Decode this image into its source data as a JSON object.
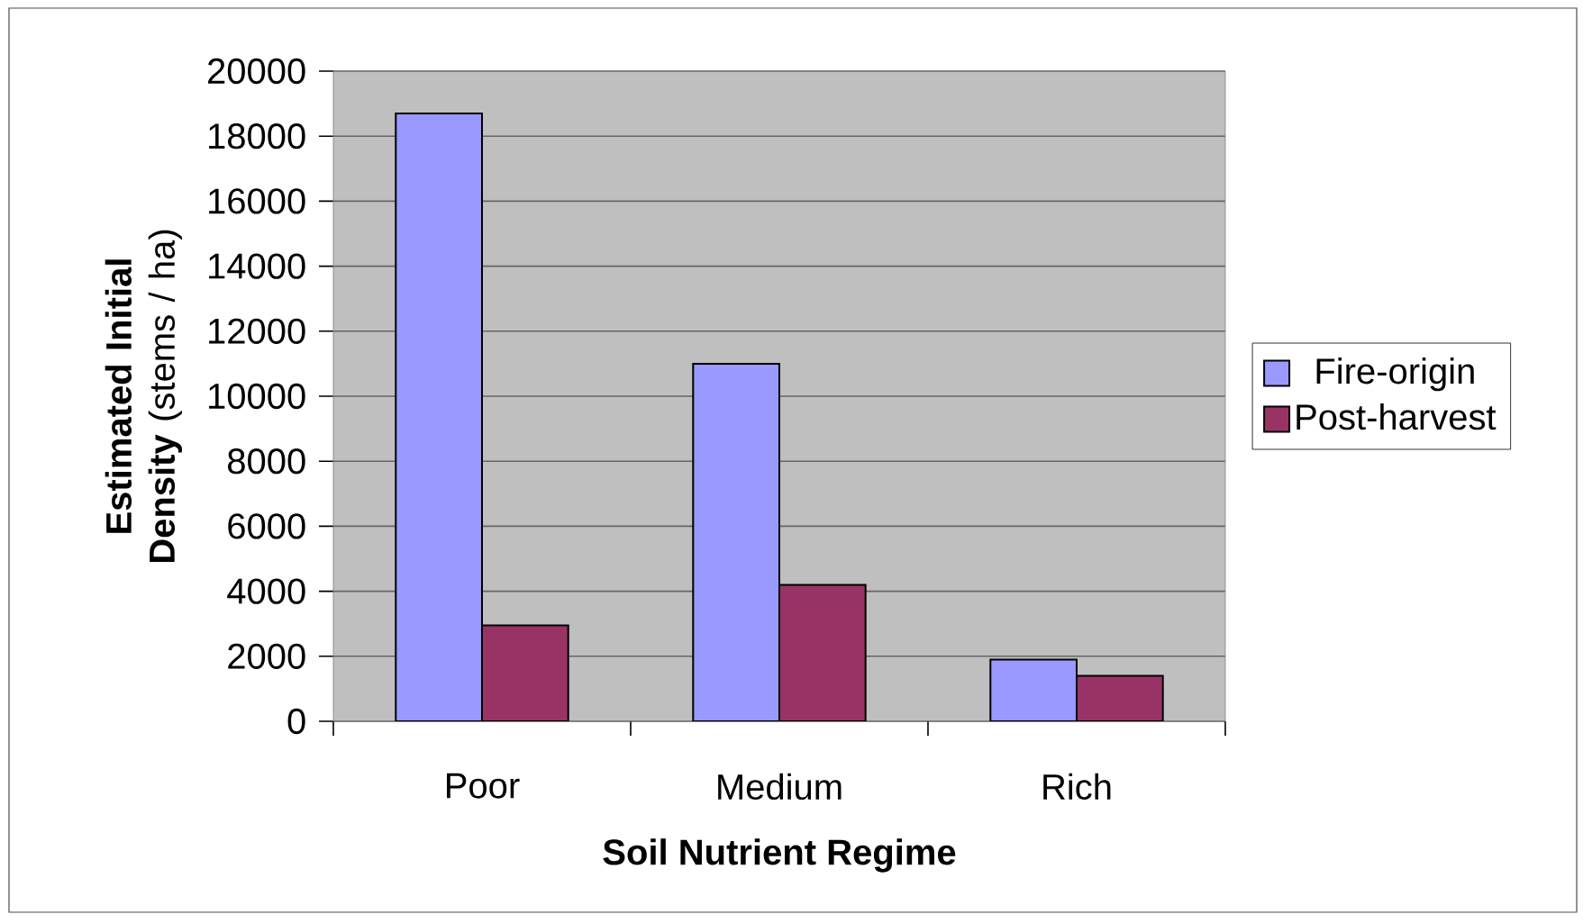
{
  "chart_data": {
    "type": "bar",
    "xlabel": "Soil Nutrient Regime",
    "ylabel": "**Estimated Initial Density** (stems / ha)",
    "categories": [
      "Poor",
      "Medium",
      "Rich"
    ],
    "series": [
      {
        "name": "Fire-origin",
        "color": "#9999ff",
        "values": [
          18700,
          11000,
          1900
        ]
      },
      {
        "name": "Post-harvest",
        "color": "#993366",
        "values": [
          2950,
          4200,
          1400
        ]
      }
    ],
    "ylim": [
      0,
      20000
    ],
    "yticks": [
      0,
      2000,
      4000,
      6000,
      8000,
      10000,
      12000,
      14000,
      16000,
      18000,
      20000
    ],
    "grid": "y",
    "legend": "right"
  }
}
